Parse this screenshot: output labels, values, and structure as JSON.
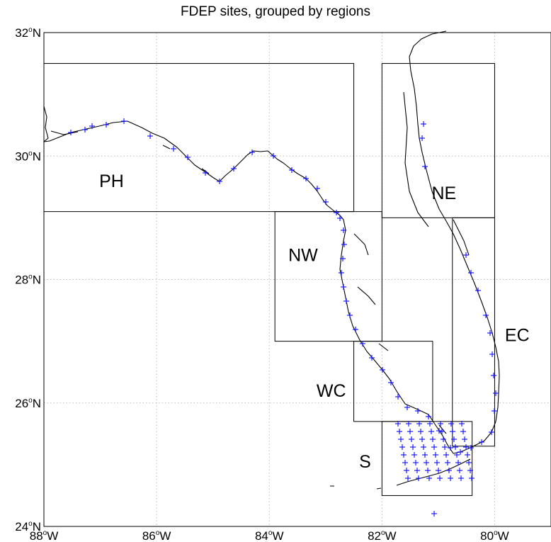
{
  "map": {
    "title": "FDEP sites, grouped by regions",
    "lon_ticks": [
      {
        "value": -88,
        "label": "88",
        "unit": "W"
      },
      {
        "value": -86,
        "label": "86",
        "unit": "W"
      },
      {
        "value": -84,
        "label": "84",
        "unit": "W"
      },
      {
        "value": -82,
        "label": "82",
        "unit": "W"
      },
      {
        "value": -80,
        "label": "80",
        "unit": "W"
      }
    ],
    "lat_ticks": [
      {
        "value": 32,
        "label": "32",
        "unit": "N"
      },
      {
        "value": 30,
        "label": "30",
        "unit": "N"
      },
      {
        "value": 28,
        "label": "28",
        "unit": "N"
      },
      {
        "value": 26,
        "label": "26",
        "unit": "N"
      },
      {
        "value": 24,
        "label": "24",
        "unit": "N"
      }
    ],
    "degree_symbol": "o",
    "extent": {
      "lon_min": -88,
      "lon_max": -79,
      "lat_min": 24,
      "lat_max": 32
    },
    "site_color": "#1a1aff",
    "regions": [
      {
        "name": "PH",
        "lon": [
          -88,
          -82.5
        ],
        "lat": [
          29.1,
          31.5
        ],
        "label_at": [
          -86.8,
          29.5
        ]
      },
      {
        "name": "NE",
        "lon": [
          -82,
          -80
        ],
        "lat": [
          29,
          31.5
        ],
        "label_at": [
          -80.9,
          29.3
        ]
      },
      {
        "name": "NW",
        "lon": [
          -83.9,
          -82
        ],
        "lat": [
          27,
          29.1
        ],
        "label_at": [
          -83.4,
          28.3
        ]
      },
      {
        "name": "EC",
        "lon": [
          -80.75,
          -80
        ],
        "lat": [
          25.3,
          29
        ],
        "label_at": [
          -79.6,
          27.0
        ]
      },
      {
        "name": "WC",
        "lon": [
          -82.5,
          -81.1
        ],
        "lat": [
          25.7,
          27
        ],
        "label_at": [
          -82.9,
          26.1
        ]
      },
      {
        "name": "S",
        "lon": [
          -82,
          -80.4
        ],
        "lat": [
          24.5,
          25.7
        ],
        "label_at": [
          -82.3,
          24.95
        ]
      }
    ]
  }
}
